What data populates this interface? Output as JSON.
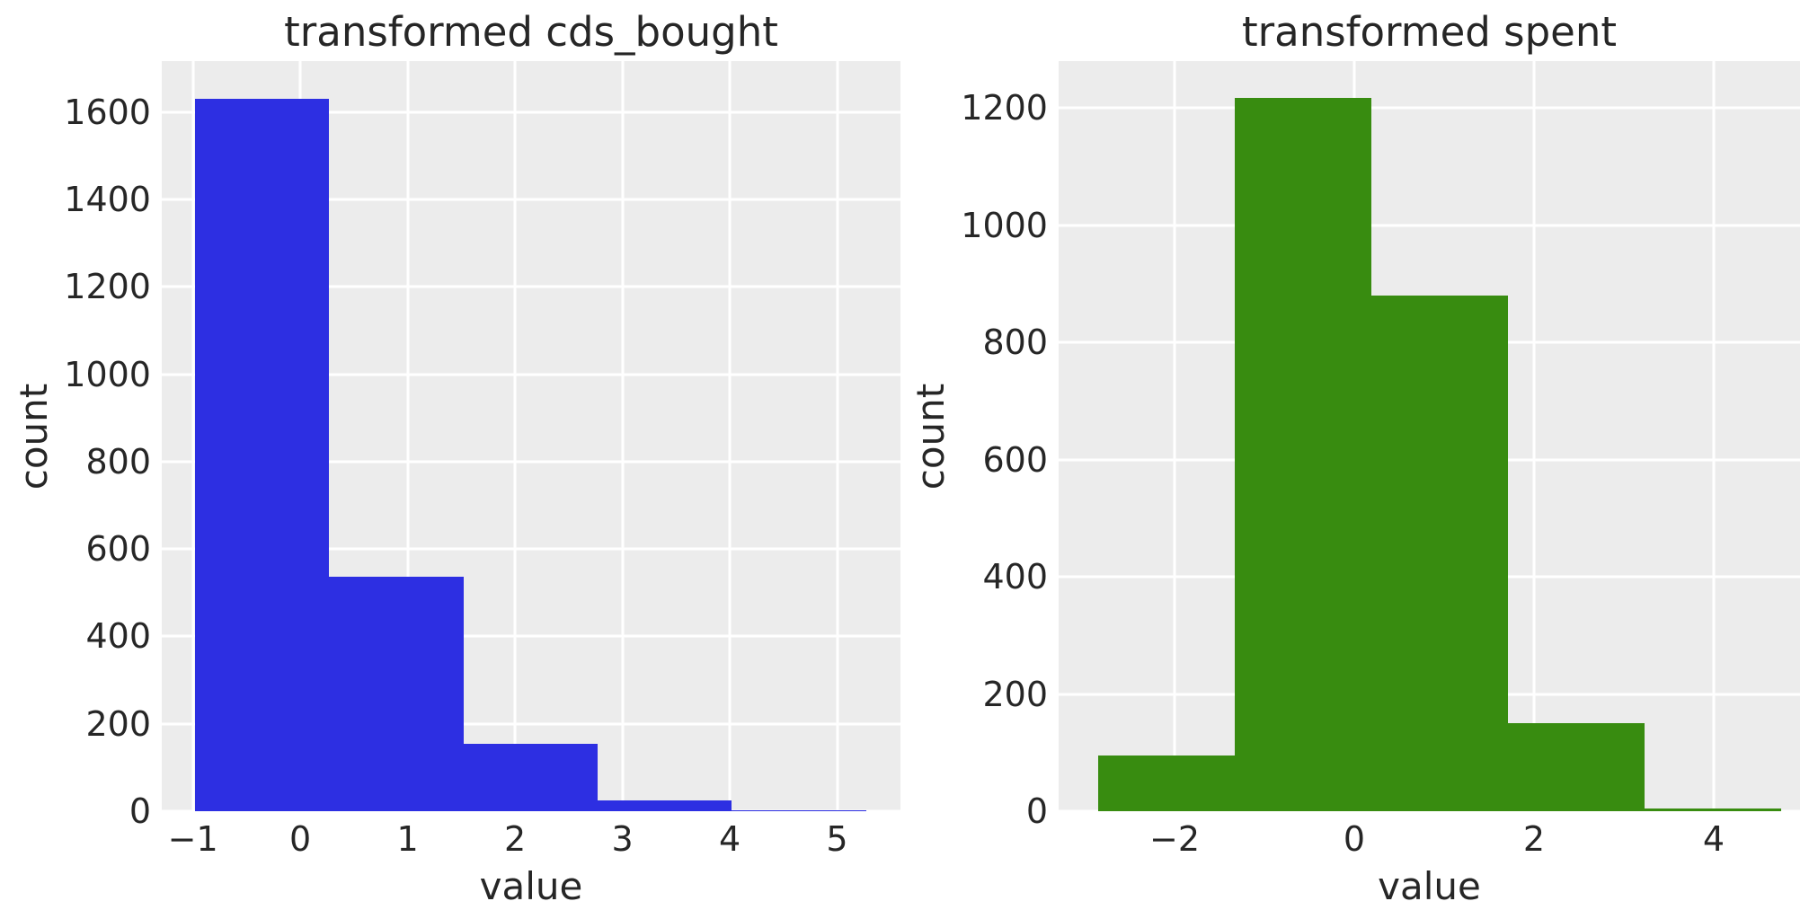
{
  "figure": {
    "background": "#ffffff",
    "panel_background": "#ececec",
    "grid_color": "#ffffff",
    "text_color": "#262626"
  },
  "chart_data": [
    {
      "type": "bar",
      "subtype": "histogram",
      "title": "transformed cds_bought",
      "xlabel": "value",
      "ylabel": "count",
      "color": "#2d2fe2",
      "bin_edges": [
        -0.98,
        0.27,
        1.52,
        2.77,
        4.02,
        5.27
      ],
      "counts": [
        1630,
        537,
        154,
        25,
        3
      ],
      "xlim": [
        -1.29,
        5.59
      ],
      "ylim": [
        0,
        1717
      ],
      "xticks": [
        -1,
        0,
        1,
        2,
        3,
        4,
        5
      ],
      "yticks": [
        0,
        200,
        400,
        600,
        800,
        1000,
        1200,
        1400,
        1600
      ],
      "grid": true,
      "legend": "none"
    },
    {
      "type": "bar",
      "subtype": "histogram",
      "title": "transformed spent",
      "xlabel": "value",
      "ylabel": "count",
      "color": "#388c10",
      "bin_edges": [
        -2.85,
        -1.33,
        0.19,
        1.71,
        3.23,
        4.75
      ],
      "counts": [
        95,
        1217,
        880,
        150,
        5
      ],
      "xlim": [
        -3.29,
        4.96
      ],
      "ylim": [
        0,
        1280
      ],
      "xticks": [
        -2,
        0,
        2,
        4
      ],
      "yticks": [
        0,
        200,
        400,
        600,
        800,
        1000,
        1200
      ],
      "grid": true,
      "legend": "none"
    }
  ]
}
